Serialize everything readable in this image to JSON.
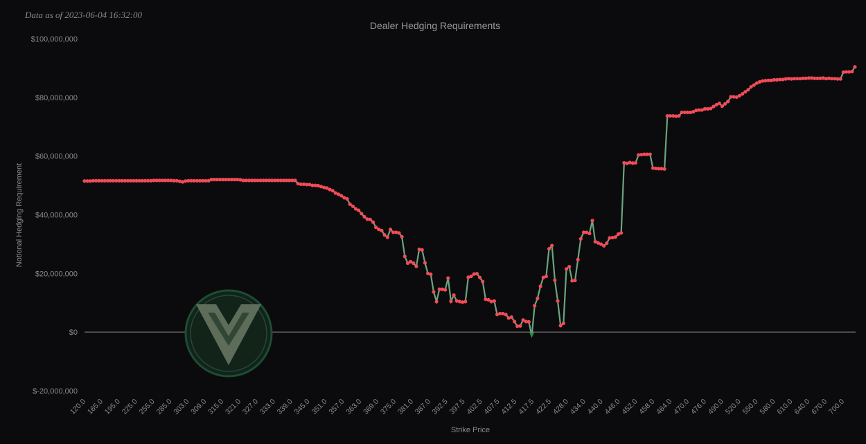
{
  "stamp": "Data as of 2023-06-04 16:32:00",
  "colors": {
    "background": "#0b0b0d",
    "line": "#6aa57f",
    "positive_marker": "#f24b57",
    "negative_marker": "#2e8b4a",
    "zero_line": "#8a8a8a",
    "text": "#8c8c8c"
  },
  "logo": {
    "icon": "v-shield-logo-icon"
  },
  "chart_data": {
    "type": "line",
    "title": "Dealer Hedging Requirements",
    "xlabel": "Strike Price",
    "ylabel": "Notional Hedging Requirement",
    "ylim": [
      -20000000,
      100000000
    ],
    "yticks": [
      -20000000,
      0,
      20000000,
      40000000,
      60000000,
      80000000,
      100000000
    ],
    "ytick_labels": [
      "$-20,000,000",
      "$0",
      "$20,000,000",
      "$40,000,000",
      "$60,000,000",
      "$80,000,000",
      "$100,000,000"
    ],
    "xtick_labels": [
      "120.0",
      "165.0",
      "195.0",
      "225.0",
      "255.0",
      "285.0",
      "303.0",
      "309.0",
      "315.0",
      "321.0",
      "327.0",
      "333.0",
      "339.0",
      "345.0",
      "351.0",
      "357.0",
      "363.0",
      "369.0",
      "375.0",
      "381.0",
      "387.0",
      "392.5",
      "397.5",
      "402.5",
      "407.5",
      "412.5",
      "417.5",
      "422.5",
      "428.0",
      "434.0",
      "440.0",
      "446.0",
      "452.0",
      "458.0",
      "464.0",
      "470.0",
      "476.0",
      "490.0",
      "520.0",
      "550.0",
      "580.0",
      "610.0",
      "640.0",
      "670.0",
      "700.0"
    ],
    "grid": false,
    "legend": "none",
    "series": [
      {
        "values": [
          51.5,
          51.5,
          51.5,
          51.6,
          51.6,
          51.6,
          51.6,
          51.6,
          51.6,
          51.6,
          51.6,
          51.6,
          51.6,
          51.6,
          51.6,
          51.6,
          51.6,
          51.6,
          51.6,
          51.6,
          51.6,
          51.6,
          51.6,
          51.6,
          51.7,
          51.7,
          51.7,
          51.7,
          51.7,
          51.7,
          51.7,
          51.6,
          51.6,
          51.4,
          51.2,
          51.5,
          51.6,
          51.6,
          51.6,
          51.6,
          51.6,
          51.6,
          51.6,
          51.6,
          52,
          52,
          52,
          52,
          52,
          52,
          52,
          52,
          52,
          52,
          51.9,
          51.7,
          51.7,
          51.7,
          51.7,
          51.7,
          51.7,
          51.7,
          51.7,
          51.7,
          51.7,
          51.7,
          51.7,
          51.7,
          51.7,
          51.7,
          51.7,
          51.7,
          51.7,
          51.7,
          50.6,
          50.4,
          50.4,
          50.3,
          50.3,
          50,
          50,
          49.9,
          49.6,
          49.3,
          49.1,
          48.6,
          48.2,
          47.4,
          47,
          46.5,
          45.8,
          45.4,
          43.6,
          42.9,
          42,
          41.5,
          40.4,
          39.3,
          38.5,
          38.4,
          37.5,
          35.7,
          35,
          34.6,
          33.1,
          32.3,
          35,
          34,
          34,
          33.8,
          32.5,
          25.8,
          23.5,
          24,
          23.5,
          22.4,
          28.2,
          28,
          23.6,
          20,
          19.7,
          13.7,
          10.4,
          14.6,
          14.6,
          14.4,
          18.4,
          10.5,
          12.6,
          10.6,
          10.4,
          10.2,
          10.4,
          18.7,
          19,
          19.8,
          19.9,
          18.6,
          17.2,
          11.2,
          11,
          10.4,
          10.6,
          6,
          6.3,
          6.3,
          6,
          4.8,
          5.1,
          3.6,
          2,
          2.1,
          4.1,
          3.6,
          3.5,
          -1.3,
          9,
          11.5,
          15.6,
          18.6,
          19,
          28.4,
          29.5,
          17.7,
          10.6,
          2.2,
          3,
          21.5,
          22.3,
          17.5,
          17.6,
          24.7,
          31.8,
          34,
          34,
          33.6,
          38,
          30.8,
          30.4,
          30,
          29.4,
          30.3,
          32.1,
          32.2,
          32.4,
          33.4,
          33.8,
          57.7,
          57.5,
          57.8,
          57.6,
          57.7,
          60.4,
          60.5,
          60.6,
          60.6,
          60.6,
          55.9,
          55.8,
          55.7,
          55.7,
          55.6,
          73.7,
          73.7,
          73.7,
          73.6,
          73.7,
          74.9,
          74.9,
          74.9,
          74.9,
          75.1,
          75.6,
          75.7,
          75.7,
          76.1,
          76.1,
          76.2,
          76.9,
          77.5,
          78,
          77,
          77.8,
          78.6,
          80.2,
          80.2,
          80.1,
          80.6,
          81.2,
          81.9,
          82.6,
          83.6,
          84.2,
          84.9,
          85.3,
          85.6,
          85.7,
          85.8,
          85.8,
          86,
          86,
          86.1,
          86.1,
          86.3,
          86.4,
          86.3,
          86.4,
          86.4,
          86.4,
          86.5,
          86.5,
          86.6,
          86.6,
          86.5,
          86.5,
          86.5,
          86.6,
          86.4,
          86.5,
          86.4,
          86.4,
          86.3,
          86.3,
          88.6,
          88.7,
          88.7,
          88.8,
          90.4
        ],
        "unit_multiplier": 1000000
      }
    ]
  }
}
